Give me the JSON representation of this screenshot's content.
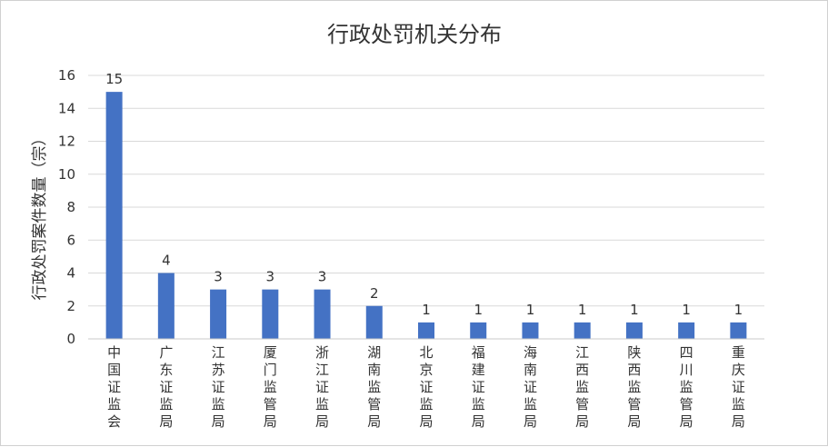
{
  "chart_data": {
    "type": "bar",
    "title": "行政处罚机关分布",
    "xlabel": "",
    "ylabel": "行政处罚案件数量（宗）",
    "categories": [
      "中国证监会",
      "广东证监局",
      "江苏证监局",
      "厦门监管局",
      "浙江证监局",
      "湖南监管局",
      "北京证监局",
      "福建证监局",
      "海南证监局",
      "江西监管局",
      "陕西监管局",
      "四川监管局",
      "重庆证监局"
    ],
    "values": [
      15,
      4,
      3,
      3,
      3,
      2,
      1,
      1,
      1,
      1,
      1,
      1,
      1
    ],
    "yticks": [
      "0",
      "2",
      "4",
      "6",
      "8",
      "10",
      "12",
      "14",
      "16"
    ],
    "ylim": [
      0,
      16
    ],
    "grid": true,
    "legend": "none",
    "bar_color": "#4472c4"
  }
}
